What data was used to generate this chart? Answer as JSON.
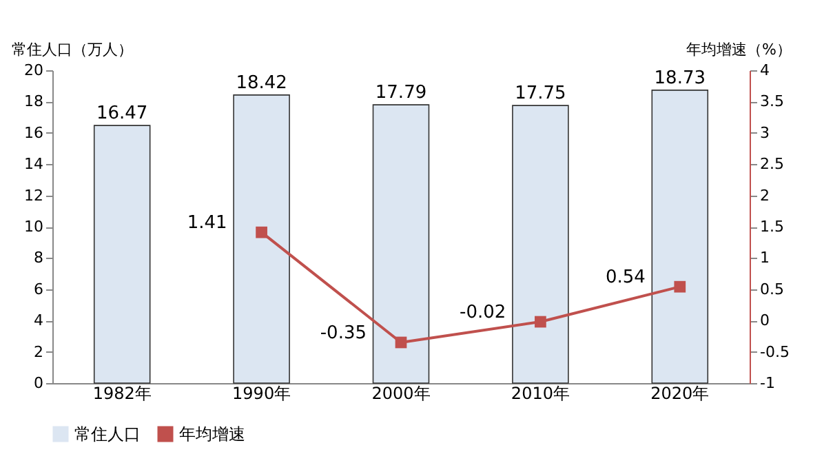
{
  "chart_data": {
    "type": "bar",
    "categories": [
      "1982年",
      "1990年",
      "2000年",
      "2010年",
      "2020年"
    ],
    "ylabel": "常住人口（万人）",
    "y2label": "年均增速（%）",
    "series": [
      {
        "name": "常住人口",
        "color": "#dce6f2",
        "values": [
          16.47,
          18.42,
          17.79,
          17.75,
          18.73
        ]
      },
      {
        "name": "年均增速",
        "type": "line",
        "axis": "y2",
        "color": "#c0504d",
        "values": [
          null,
          1.41,
          -0.35,
          -0.02,
          0.54
        ]
      }
    ],
    "ylim": [
      0,
      20
    ],
    "yticks": [
      0,
      2,
      4,
      6,
      8,
      10,
      12,
      14,
      16,
      18,
      20
    ],
    "y2lim": [
      -1,
      4
    ],
    "y2ticks": [
      -1,
      -0.5,
      0,
      0.5,
      1,
      1.5,
      2,
      2.5,
      3,
      3.5,
      4
    ],
    "data_labels": true,
    "marker": "square",
    "grid": false,
    "legend": "bottom"
  }
}
